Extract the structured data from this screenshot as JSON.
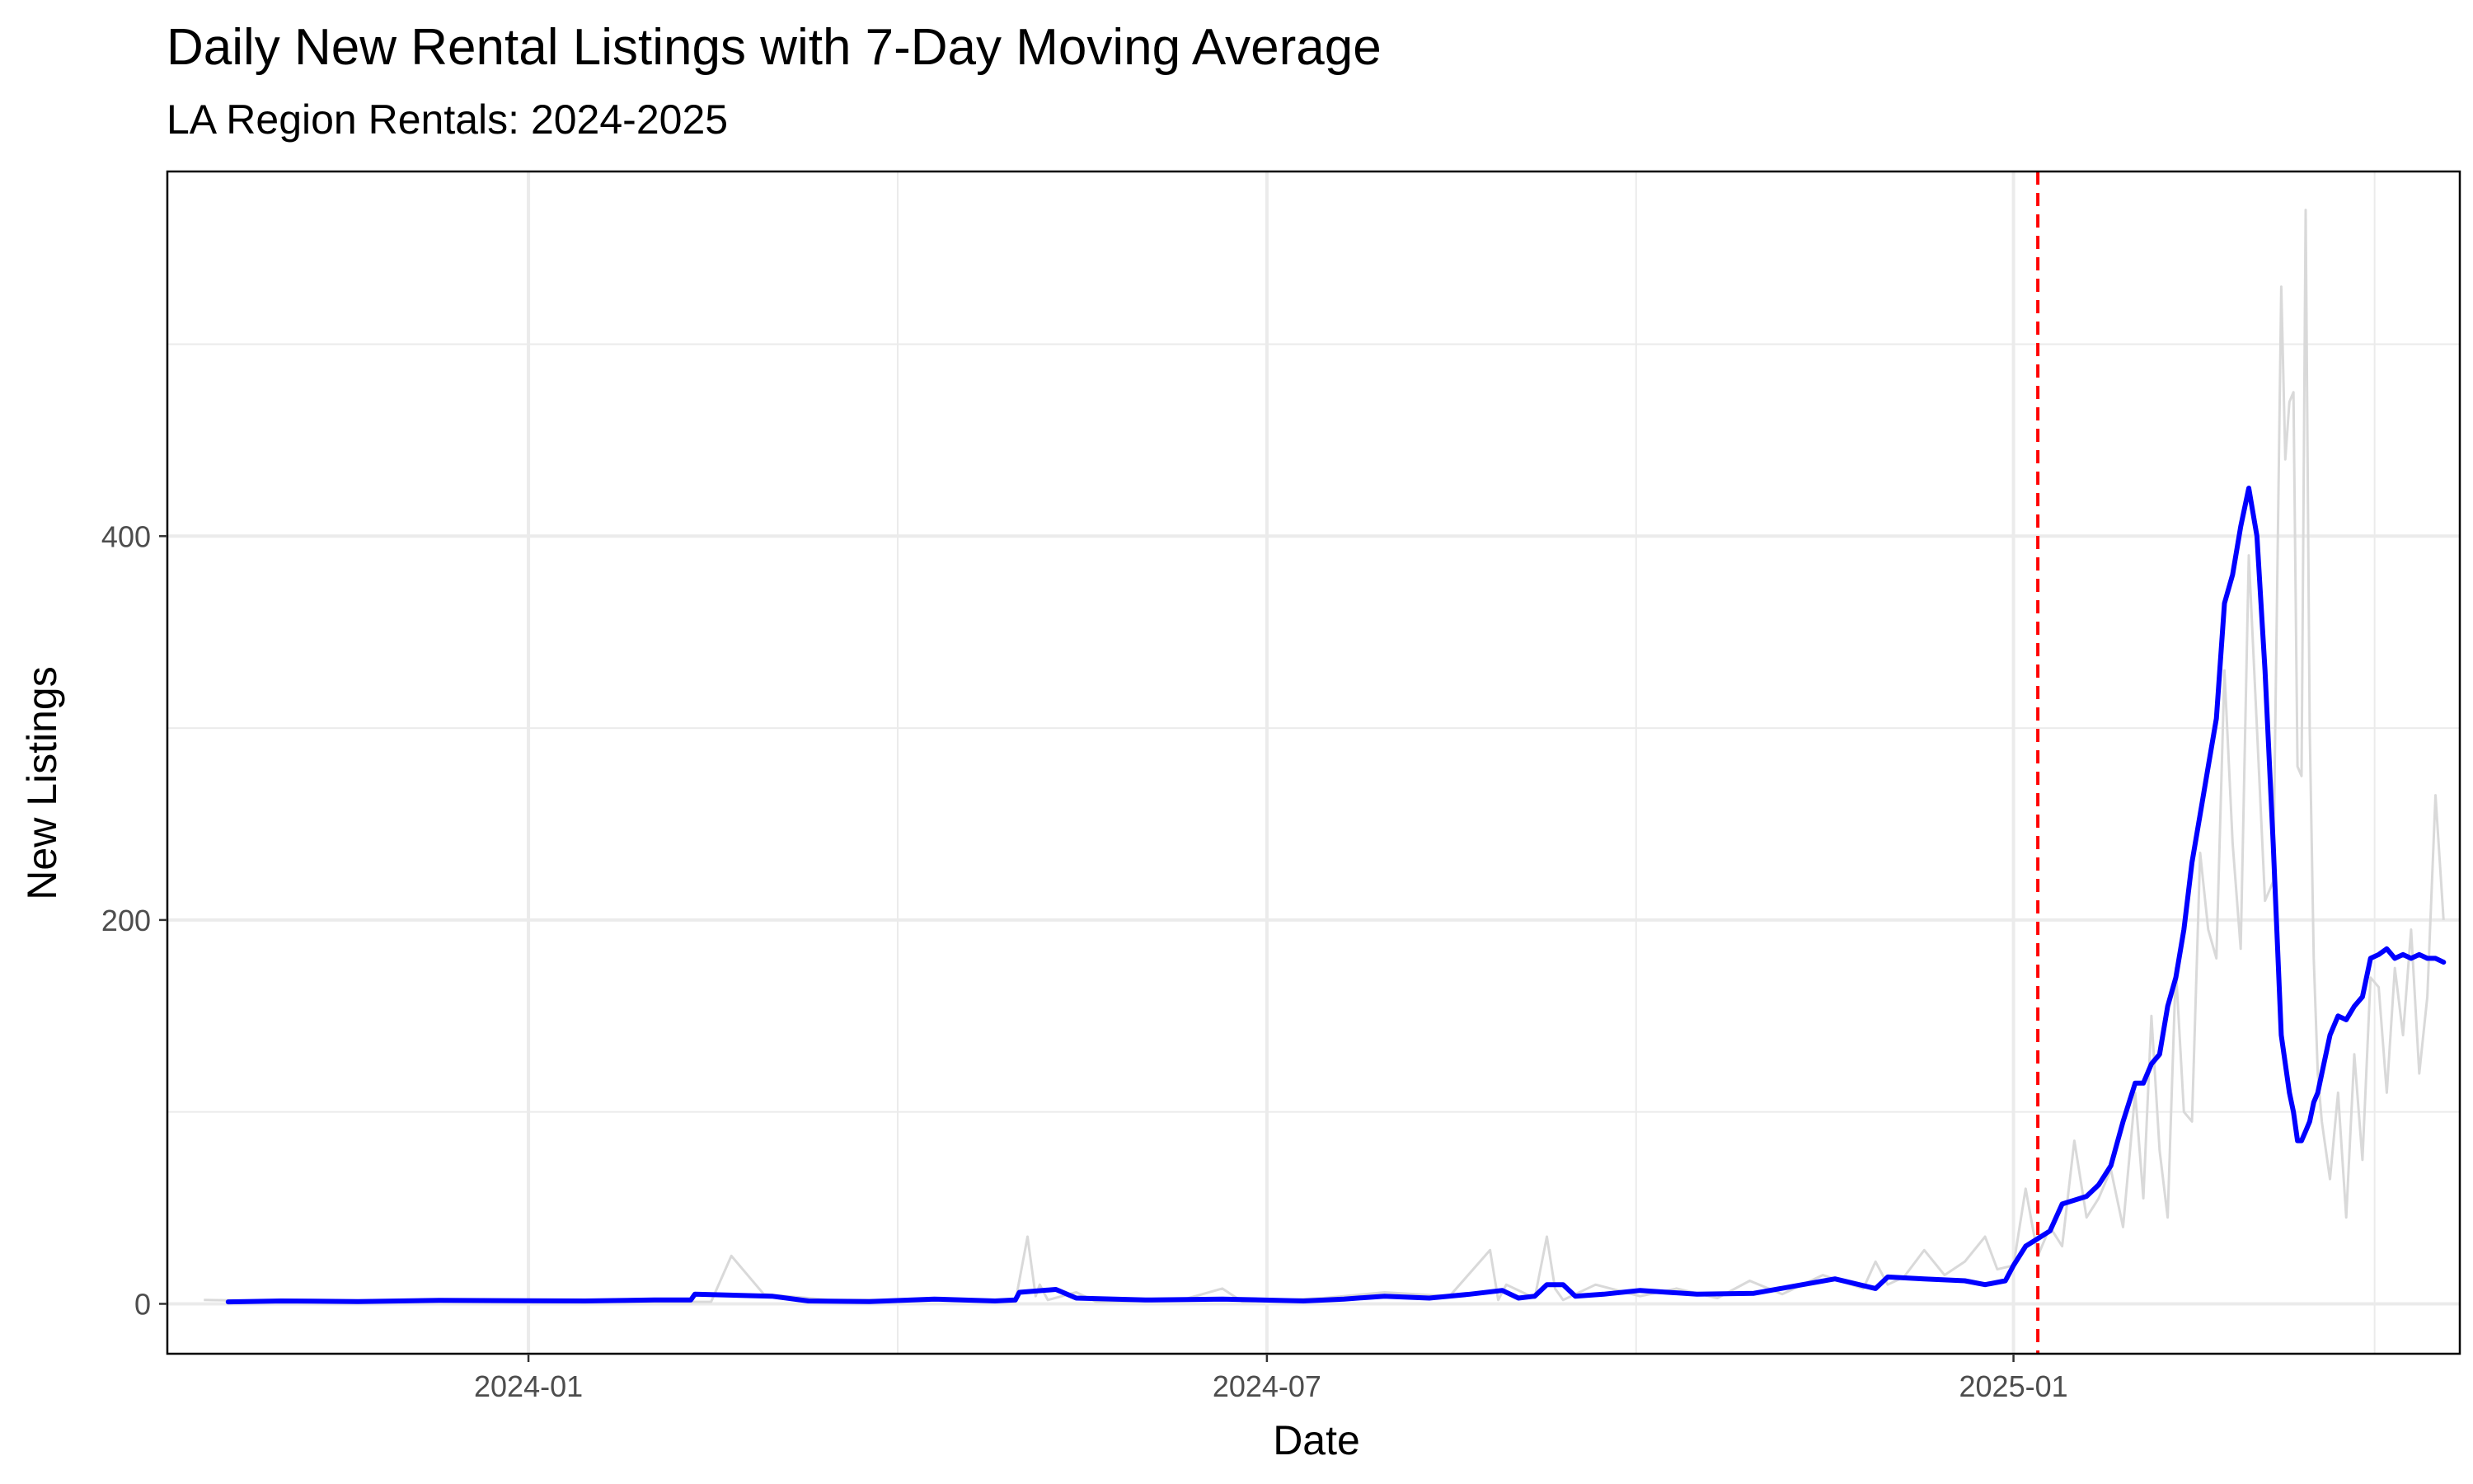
{
  "chart_data": {
    "type": "line",
    "title": "Daily New Rental Listings with 7-Day Moving Average",
    "subtitle": "LA Region Rentals: 2024-2025",
    "xlabel": "Date",
    "ylabel": "New Listings",
    "x_range": [
      "2023-10-04",
      "2025-04-21"
    ],
    "ylim": [
      -26,
      590
    ],
    "x_ticks": [
      {
        "label": "2024-01",
        "date": "2024-01-01"
      },
      {
        "label": "2024-07",
        "date": "2024-07-01"
      },
      {
        "label": "2025-01",
        "date": "2025-01-01"
      }
    ],
    "y_ticks": [
      0,
      200,
      400
    ],
    "grid": true,
    "colors": {
      "daily": "#d9d9d9",
      "moving_average": "#0000ff",
      "reference_line": "#ff0000",
      "grid": "#ebebeb",
      "panel_border": "#000000"
    },
    "reference_line": {
      "date": "2025-01-07",
      "style": "dashed"
    },
    "series": [
      {
        "key": "daily",
        "x": [
          "2023-10-13",
          "2023-11-15",
          "2023-12-20",
          "2024-01-25",
          "2024-02-15",
          "2024-02-20",
          "2024-02-28",
          "2024-03-15",
          "2024-04-10",
          "2024-04-30",
          "2024-05-03",
          "2024-05-05",
          "2024-05-06",
          "2024-05-08",
          "2024-05-15",
          "2024-05-20",
          "2024-06-10",
          "2024-06-20",
          "2024-06-25",
          "2024-07-15",
          "2024-07-30",
          "2024-08-15",
          "2024-08-25",
          "2024-08-27",
          "2024-08-29",
          "2024-09-05",
          "2024-09-08",
          "2024-09-10",
          "2024-09-12",
          "2024-09-20",
          "2024-10-01",
          "2024-10-10",
          "2024-10-20",
          "2024-10-28",
          "2024-11-05",
          "2024-11-15",
          "2024-11-25",
          "2024-11-28",
          "2024-12-01",
          "2024-12-05",
          "2024-12-10",
          "2024-12-15",
          "2024-12-20",
          "2024-12-25",
          "2024-12-28",
          "2025-01-01",
          "2025-01-04",
          "2025-01-07",
          "2025-01-10",
          "2025-01-13",
          "2025-01-16",
          "2025-01-19",
          "2025-01-22",
          "2025-01-25",
          "2025-01-28",
          "2025-01-31",
          "2025-02-02",
          "2025-02-04",
          "2025-02-06",
          "2025-02-08",
          "2025-02-10",
          "2025-02-12",
          "2025-02-14",
          "2025-02-16",
          "2025-02-18",
          "2025-02-20",
          "2025-02-22",
          "2025-02-24",
          "2025-02-26",
          "2025-02-28",
          "2025-03-02",
          "2025-03-04",
          "2025-03-06",
          "2025-03-08",
          "2025-03-09",
          "2025-03-10",
          "2025-03-11",
          "2025-03-12",
          "2025-03-13",
          "2025-03-14",
          "2025-03-15",
          "2025-03-16",
          "2025-03-17",
          "2025-03-18",
          "2025-03-20",
          "2025-03-22",
          "2025-03-24",
          "2025-03-26",
          "2025-03-28",
          "2025-03-30",
          "2025-04-01",
          "2025-04-03",
          "2025-04-05",
          "2025-04-07",
          "2025-04-09",
          "2025-04-11",
          "2025-04-13",
          "2025-04-15",
          "2025-04-17"
        ],
        "values": [
          2,
          1,
          2,
          1,
          1,
          25,
          5,
          2,
          2,
          1,
          35,
          4,
          10,
          2,
          6,
          1,
          2,
          8,
          1,
          3,
          6,
          4,
          28,
          2,
          10,
          3,
          35,
          8,
          2,
          10,
          4,
          8,
          3,
          12,
          5,
          15,
          8,
          22,
          10,
          14,
          28,
          15,
          22,
          35,
          18,
          20,
          60,
          25,
          40,
          30,
          85,
          45,
          55,
          70,
          40,
          110,
          55,
          150,
          80,
          45,
          175,
          100,
          95,
          235,
          195,
          180,
          330,
          240,
          185,
          390,
          300,
          210,
          220,
          530,
          440,
          470,
          475,
          280,
          275,
          570,
          300,
          180,
          120,
          95,
          65,
          110,
          45,
          130,
          75,
          170,
          165,
          110,
          175,
          140,
          195,
          120,
          160,
          265,
          200
        ]
      },
      {
        "key": "moving_average",
        "x": [
          "2023-10-19",
          "2023-11-01",
          "2023-11-20",
          "2023-12-10",
          "2024-01-15",
          "2024-02-01",
          "2024-02-10",
          "2024-02-11",
          "2024-03-01",
          "2024-03-10",
          "2024-03-25",
          "2024-04-10",
          "2024-04-25",
          "2024-04-30",
          "2024-05-01",
          "2024-05-10",
          "2024-05-15",
          "2024-06-01",
          "2024-06-20",
          "2024-07-10",
          "2024-07-20",
          "2024-07-30",
          "2024-08-10",
          "2024-08-20",
          "2024-08-28",
          "2024-09-01",
          "2024-09-05",
          "2024-09-08",
          "2024-09-12",
          "2024-09-15",
          "2024-09-22",
          "2024-10-01",
          "2024-10-15",
          "2024-10-29",
          "2024-11-10",
          "2024-11-18",
          "2024-11-28",
          "2024-12-01",
          "2024-12-10",
          "2024-12-20",
          "2024-12-25",
          "2024-12-30",
          "2025-01-01",
          "2025-01-04",
          "2025-01-07",
          "2025-01-10",
          "2025-01-13",
          "2025-01-16",
          "2025-01-19",
          "2025-01-22",
          "2025-01-25",
          "2025-01-28",
          "2025-01-31",
          "2025-02-02",
          "2025-02-04",
          "2025-02-06",
          "2025-02-08",
          "2025-02-10",
          "2025-02-12",
          "2025-02-14",
          "2025-02-16",
          "2025-02-18",
          "2025-02-20",
          "2025-02-22",
          "2025-02-24",
          "2025-02-26",
          "2025-02-28",
          "2025-03-02",
          "2025-03-04",
          "2025-03-06",
          "2025-03-08",
          "2025-03-10",
          "2025-03-11",
          "2025-03-12",
          "2025-03-13",
          "2025-03-14",
          "2025-03-15",
          "2025-03-16",
          "2025-03-17",
          "2025-03-18",
          "2025-03-20",
          "2025-03-22",
          "2025-03-24",
          "2025-03-26",
          "2025-03-28",
          "2025-03-30",
          "2025-04-01",
          "2025-04-03",
          "2025-04-05",
          "2025-04-07",
          "2025-04-09",
          "2025-04-11",
          "2025-04-13",
          "2025-04-15",
          "2025-04-17"
        ],
        "values": [
          1,
          1.5,
          1.2,
          1.8,
          1.5,
          2,
          2,
          5,
          4,
          1.5,
          1.2,
          2.5,
          1.5,
          2,
          6,
          7.5,
          3,
          2,
          2.5,
          1.5,
          2.5,
          4,
          3,
          5,
          7,
          3,
          4,
          10,
          10,
          4,
          5,
          7,
          5,
          5.5,
          10,
          13,
          8,
          14,
          13,
          12,
          10,
          12,
          20,
          30,
          34,
          38,
          52,
          54,
          56,
          62,
          72,
          95,
          115,
          115,
          125,
          130,
          155,
          170,
          195,
          230,
          255,
          280,
          305,
          365,
          380,
          405,
          425,
          400,
          330,
          240,
          140,
          110,
          100,
          85,
          85,
          90,
          95,
          105,
          110,
          120,
          140,
          150,
          148,
          155,
          160,
          180,
          182,
          185,
          180,
          182,
          180,
          182,
          180,
          180,
          178
        ]
      }
    ]
  }
}
